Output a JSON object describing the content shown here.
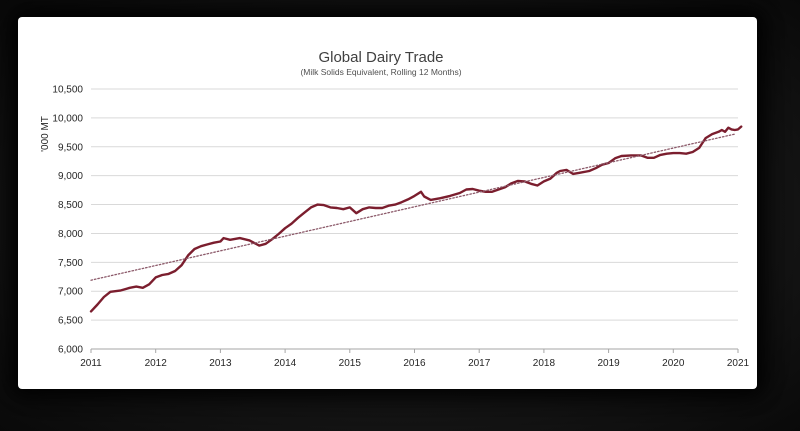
{
  "chart_data": {
    "type": "line",
    "title": "Global Dairy Trade",
    "subtitle": "(Milk Solids Equivalent, Rolling 12 Months)",
    "xlabel": "",
    "ylabel": "'000 MT",
    "xlim": [
      2011,
      2021
    ],
    "ylim": [
      6000,
      10500
    ],
    "x_ticks": [
      "2011",
      "2012",
      "2013",
      "2014",
      "2015",
      "2016",
      "2017",
      "2018",
      "2019",
      "2020",
      "2021"
    ],
    "y_ticks": [
      "6,000",
      "6,500",
      "7,000",
      "7,500",
      "8,000",
      "8,500",
      "9,000",
      "9,500",
      "10,000",
      "10,500"
    ],
    "grid": "horizontal",
    "series": [
      {
        "color": "#7b1e2e",
        "style": "solid",
        "points": [
          [
            2011.0,
            6650
          ],
          [
            2011.1,
            6770
          ],
          [
            2011.2,
            6900
          ],
          [
            2011.3,
            6990
          ],
          [
            2011.45,
            7010
          ],
          [
            2011.6,
            7060
          ],
          [
            2011.7,
            7080
          ],
          [
            2011.8,
            7060
          ],
          [
            2011.9,
            7120
          ],
          [
            2012.0,
            7240
          ],
          [
            2012.1,
            7280
          ],
          [
            2012.2,
            7300
          ],
          [
            2012.3,
            7350
          ],
          [
            2012.4,
            7450
          ],
          [
            2012.5,
            7620
          ],
          [
            2012.6,
            7730
          ],
          [
            2012.7,
            7780
          ],
          [
            2012.8,
            7810
          ],
          [
            2012.9,
            7840
          ],
          [
            2013.0,
            7860
          ],
          [
            2013.05,
            7920
          ],
          [
            2013.15,
            7890
          ],
          [
            2013.3,
            7920
          ],
          [
            2013.45,
            7880
          ],
          [
            2013.6,
            7790
          ],
          [
            2013.7,
            7820
          ],
          [
            2013.8,
            7900
          ],
          [
            2013.9,
            7990
          ],
          [
            2014.0,
            8090
          ],
          [
            2014.1,
            8170
          ],
          [
            2014.2,
            8270
          ],
          [
            2014.3,
            8360
          ],
          [
            2014.4,
            8450
          ],
          [
            2014.5,
            8500
          ],
          [
            2014.6,
            8490
          ],
          [
            2014.7,
            8450
          ],
          [
            2014.8,
            8440
          ],
          [
            2014.9,
            8420
          ],
          [
            2015.0,
            8450
          ],
          [
            2015.1,
            8350
          ],
          [
            2015.2,
            8420
          ],
          [
            2015.3,
            8450
          ],
          [
            2015.4,
            8440
          ],
          [
            2015.5,
            8440
          ],
          [
            2015.6,
            8480
          ],
          [
            2015.7,
            8500
          ],
          [
            2015.8,
            8540
          ],
          [
            2015.9,
            8590
          ],
          [
            2016.0,
            8650
          ],
          [
            2016.1,
            8720
          ],
          [
            2016.15,
            8640
          ],
          [
            2016.25,
            8580
          ],
          [
            2016.4,
            8610
          ],
          [
            2016.55,
            8650
          ],
          [
            2016.7,
            8700
          ],
          [
            2016.8,
            8760
          ],
          [
            2016.9,
            8770
          ],
          [
            2017.0,
            8740
          ],
          [
            2017.1,
            8720
          ],
          [
            2017.2,
            8720
          ],
          [
            2017.3,
            8760
          ],
          [
            2017.4,
            8800
          ],
          [
            2017.5,
            8870
          ],
          [
            2017.6,
            8910
          ],
          [
            2017.7,
            8900
          ],
          [
            2017.8,
            8860
          ],
          [
            2017.9,
            8830
          ],
          [
            2018.0,
            8900
          ],
          [
            2018.1,
            8950
          ],
          [
            2018.2,
            9050
          ],
          [
            2018.25,
            9080
          ],
          [
            2018.35,
            9100
          ],
          [
            2018.45,
            9030
          ],
          [
            2018.55,
            9050
          ],
          [
            2018.7,
            9080
          ],
          [
            2018.8,
            9130
          ],
          [
            2018.9,
            9190
          ],
          [
            2019.0,
            9220
          ],
          [
            2019.1,
            9300
          ],
          [
            2019.2,
            9340
          ],
          [
            2019.35,
            9350
          ],
          [
            2019.5,
            9350
          ],
          [
            2019.6,
            9310
          ],
          [
            2019.7,
            9310
          ],
          [
            2019.8,
            9360
          ],
          [
            2019.9,
            9380
          ],
          [
            2020.0,
            9390
          ],
          [
            2020.1,
            9390
          ],
          [
            2020.2,
            9380
          ],
          [
            2020.3,
            9410
          ],
          [
            2020.4,
            9480
          ],
          [
            2020.5,
            9650
          ],
          [
            2020.6,
            9720
          ],
          [
            2020.7,
            9760
          ],
          [
            2020.75,
            9790
          ],
          [
            2020.8,
            9760
          ],
          [
            2020.85,
            9830
          ],
          [
            2020.9,
            9800
          ],
          [
            2020.95,
            9790
          ],
          [
            2021.0,
            9800
          ],
          [
            2021.05,
            9850
          ]
        ]
      },
      {
        "color": "#8c5a6a",
        "style": "dotted",
        "points": [
          [
            2011.0,
            7190
          ],
          [
            2020.95,
            9720
          ]
        ]
      }
    ]
  }
}
